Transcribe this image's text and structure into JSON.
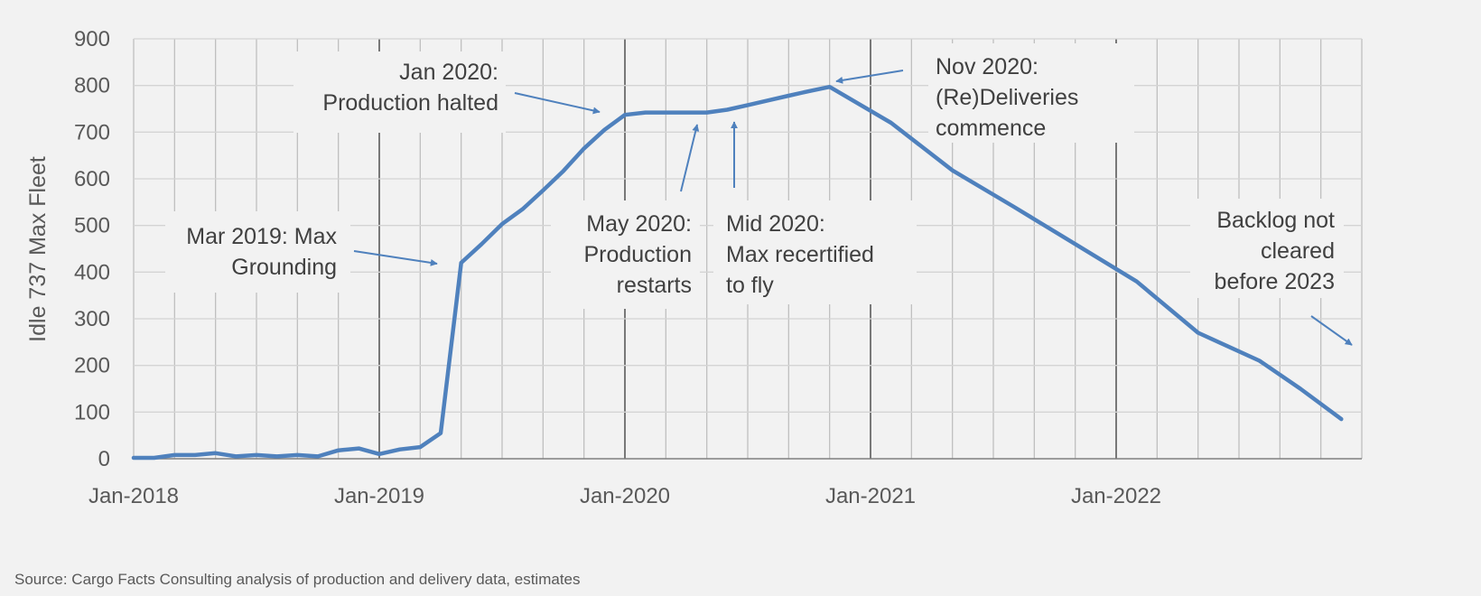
{
  "chart_data": {
    "type": "line",
    "ylabel": "Idle 737 Max Fleet",
    "xlabel": "",
    "ylim": [
      0,
      900
    ],
    "y_ticks": [
      "0",
      "100",
      "200",
      "300",
      "400",
      "500",
      "600",
      "700",
      "800",
      "900"
    ],
    "x_tick_labels": [
      "Jan-2018",
      "Jan-2019",
      "Jan-2020",
      "Jan-2021",
      "Jan-2022"
    ],
    "x_range_months": [
      "Jan-2018",
      "Dec-2022"
    ],
    "grid": true,
    "series": [
      {
        "color": "#4f81bd",
        "x": [
          "Jan-2018",
          "Feb-2018",
          "Mar-2018",
          "Apr-2018",
          "May-2018",
          "Jun-2018",
          "Jul-2018",
          "Aug-2018",
          "Sep-2018",
          "Oct-2018",
          "Nov-2018",
          "Dec-2018",
          "Jan-2019",
          "Feb-2019",
          "Mar-2019",
          "Apr-2019",
          "May-2019",
          "Jun-2019",
          "Jul-2019",
          "Aug-2019",
          "Sep-2019",
          "Oct-2019",
          "Nov-2019",
          "Dec-2019",
          "Jan-2020",
          "Feb-2020",
          "Mar-2020",
          "Apr-2020",
          "May-2020",
          "Jun-2020",
          "Jul-2020",
          "Aug-2020",
          "Sep-2020",
          "Oct-2020",
          "Nov-2020",
          "Feb-2021",
          "May-2021",
          "Aug-2021",
          "Nov-2021",
          "Feb-2022",
          "May-2022",
          "Aug-2022",
          "Oct-2022",
          "Dec-2022"
        ],
        "values": [
          2,
          2,
          8,
          8,
          12,
          5,
          8,
          5,
          8,
          5,
          18,
          22,
          10,
          20,
          25,
          55,
          420,
          460,
          503,
          535,
          575,
          617,
          665,
          705,
          737,
          742,
          742,
          742,
          742,
          748,
          758,
          768,
          778,
          788,
          797,
          720,
          618,
          540,
          460,
          380,
          270,
          210,
          150,
          85
        ]
      }
    ],
    "annotations": [
      {
        "id": "mar2019",
        "lines": [
          "Mar 2019: Max",
          "Grounding"
        ]
      },
      {
        "id": "jan2020",
        "lines": [
          "Jan 2020:",
          "Production halted"
        ]
      },
      {
        "id": "may2020",
        "lines": [
          "May 2020:",
          "Production",
          "restarts"
        ]
      },
      {
        "id": "mid2020",
        "lines": [
          "Mid 2020:",
          "Max recertified",
          "to fly"
        ]
      },
      {
        "id": "nov2020",
        "lines": [
          "Nov 2020:",
          "(Re)Deliveries",
          "commence"
        ]
      },
      {
        "id": "backlog",
        "lines": [
          "Backlog not",
          "cleared",
          "before 2023"
        ]
      }
    ]
  },
  "source": "Source: Cargo Facts Consulting analysis of production and delivery data, estimates"
}
